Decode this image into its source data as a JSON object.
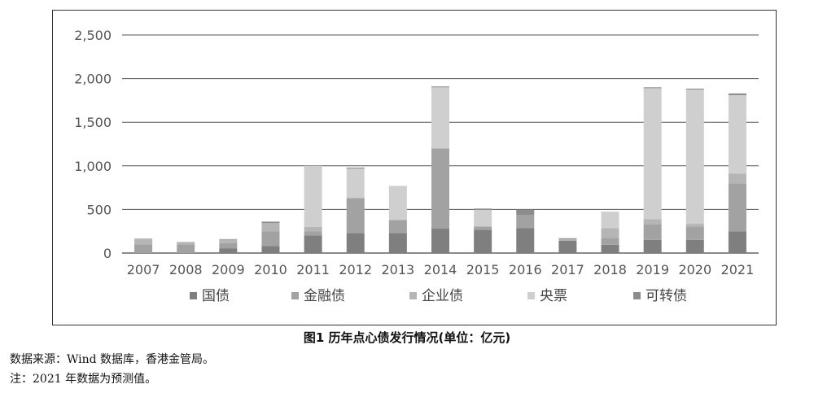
{
  "chart_data": {
    "type": "bar",
    "stacked": true,
    "categories": [
      "2007",
      "2008",
      "2009",
      "2010",
      "2011",
      "2012",
      "2013",
      "2014",
      "2015",
      "2016",
      "2017",
      "2018",
      "2019",
      "2020",
      "2021"
    ],
    "series": [
      {
        "name": "国债",
        "color": "#7f7f7f",
        "values": [
          0,
          0,
          55,
          80,
          200,
          230,
          230,
          280,
          265,
          285,
          140,
          95,
          150,
          150,
          250
        ]
      },
      {
        "name": "金融债",
        "color": "#a2a2a2",
        "values": [
          100,
          100,
          60,
          170,
          50,
          400,
          150,
          920,
          40,
          150,
          0,
          80,
          180,
          155,
          550
        ]
      },
      {
        "name": "企业债",
        "color": "#b5b5b5",
        "values": [
          60,
          20,
          40,
          95,
          50,
          0,
          0,
          0,
          0,
          0,
          20,
          110,
          60,
          30,
          110
        ]
      },
      {
        "name": "央票",
        "color": "#cfcfcf",
        "values": [
          0,
          0,
          0,
          0,
          700,
          340,
          390,
          700,
          190,
          0,
          0,
          190,
          1500,
          1540,
          900
        ]
      },
      {
        "name": "可转债",
        "color": "#8c8c8c",
        "values": [
          5,
          5,
          5,
          15,
          0,
          10,
          0,
          10,
          15,
          65,
          10,
          0,
          10,
          10,
          20
        ]
      }
    ],
    "ylim": [
      0,
      2500
    ],
    "yticks": [
      0,
      500,
      1000,
      1500,
      2000,
      2500
    ],
    "ytick_labels": [
      "0",
      "500",
      "1,000",
      "1,500",
      "2,000",
      "2,500"
    ],
    "grid": true,
    "legend_position": "bottom"
  },
  "caption": "图1  历年点心债发行情况(单位：亿元)",
  "notes": {
    "source": "数据来源：Wind 数据库，香港金管局。",
    "forecast": "注：2021 年数据为预测值。"
  }
}
